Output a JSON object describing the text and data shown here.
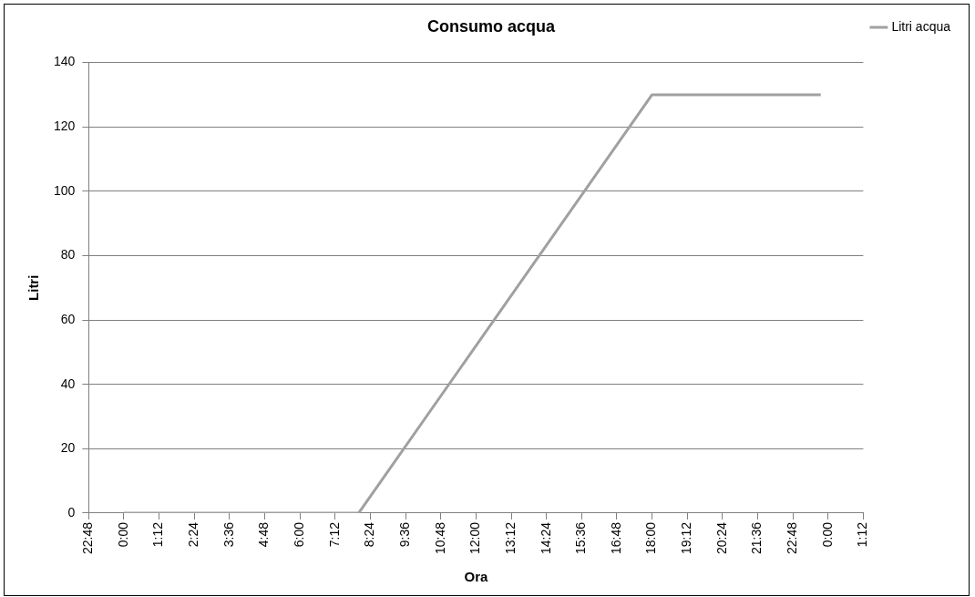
{
  "chart_data": {
    "type": "line",
    "title": "Consumo acqua",
    "xlabel": "Ora",
    "ylabel": "Litri",
    "series": [
      {
        "name": "Litri acqua",
        "color": "#a0a0a0",
        "x": [
          "2000-01-02T00:00",
          "2000-01-02T08:00",
          "2000-01-02T18:00",
          "2000-01-02T23:45"
        ],
        "values": [
          0,
          0,
          130,
          130
        ]
      }
    ],
    "xlim": [
      "2000-01-01T22:48",
      "2000-01-03T01:12"
    ],
    "xticks": [
      {
        "value": "2000-01-01T22:48",
        "label": "22:48"
      },
      {
        "value": "2000-01-02T00:00",
        "label": "0:00"
      },
      {
        "value": "2000-01-02T01:12",
        "label": "1:12"
      },
      {
        "value": "2000-01-02T02:24",
        "label": "2:24"
      },
      {
        "value": "2000-01-02T03:36",
        "label": "3:36"
      },
      {
        "value": "2000-01-02T04:48",
        "label": "4:48"
      },
      {
        "value": "2000-01-02T06:00",
        "label": "6:00"
      },
      {
        "value": "2000-01-02T07:12",
        "label": "7:12"
      },
      {
        "value": "2000-01-02T08:24",
        "label": "8:24"
      },
      {
        "value": "2000-01-02T09:36",
        "label": "9:36"
      },
      {
        "value": "2000-01-02T10:48",
        "label": "10:48"
      },
      {
        "value": "2000-01-02T12:00",
        "label": "12:00"
      },
      {
        "value": "2000-01-02T13:12",
        "label": "13:12"
      },
      {
        "value": "2000-01-02T14:24",
        "label": "14:24"
      },
      {
        "value": "2000-01-02T15:36",
        "label": "15:36"
      },
      {
        "value": "2000-01-02T16:48",
        "label": "16:48"
      },
      {
        "value": "2000-01-02T18:00",
        "label": "18:00"
      },
      {
        "value": "2000-01-02T19:12",
        "label": "19:12"
      },
      {
        "value": "2000-01-02T20:24",
        "label": "20:24"
      },
      {
        "value": "2000-01-02T21:36",
        "label": "21:36"
      },
      {
        "value": "2000-01-02T22:48",
        "label": "22:48"
      },
      {
        "value": "2000-01-03T00:00",
        "label": "0:00"
      },
      {
        "value": "2000-01-03T01:12",
        "label": "1:12"
      }
    ],
    "ylim": [
      0,
      140
    ],
    "yticks": [
      0,
      20,
      40,
      60,
      80,
      100,
      120,
      140
    ],
    "grid": "y",
    "legend": "top right",
    "marker": "none",
    "line_style": "solid"
  }
}
